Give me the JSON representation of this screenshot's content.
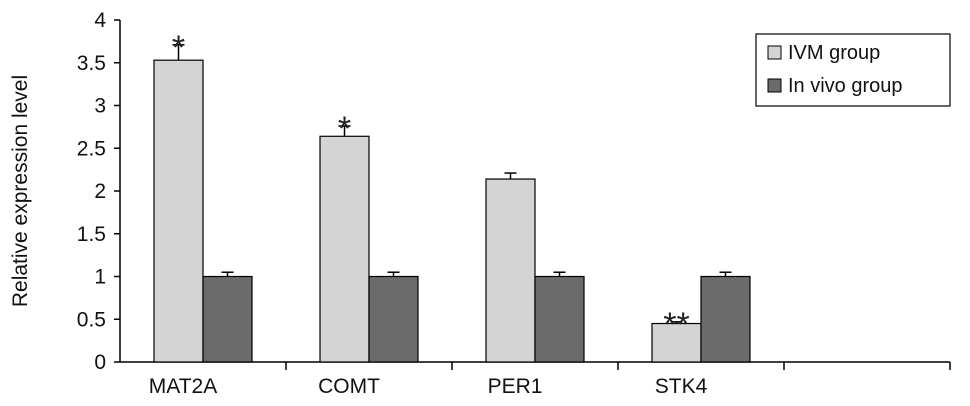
{
  "chart_data": {
    "type": "bar",
    "title": "",
    "xlabel": "",
    "ylabel": "Relative expression level",
    "ylim": [
      0,
      4
    ],
    "yticks": [
      0,
      0.5,
      1,
      1.5,
      2,
      2.5,
      3,
      3.5,
      4
    ],
    "ytick_labels": [
      "0",
      "0.5",
      "1",
      "1.5",
      "2",
      "2.5",
      "3",
      "3.5",
      "4"
    ],
    "categories": [
      "MAT2A",
      "COMT",
      "PER1",
      "STK4"
    ],
    "series": [
      {
        "name": "IVM group",
        "color": "#d4d4d4",
        "values": [
          3.53,
          2.64,
          2.14,
          0.45
        ],
        "errors": [
          0.18,
          0.12,
          0.07,
          0.02
        ],
        "annotations": [
          "*",
          "*",
          "",
          "**"
        ]
      },
      {
        "name": "In vivo group",
        "color": "#6b6b6b",
        "values": [
          1.0,
          1.0,
          1.0,
          1.0
        ],
        "errors": [
          0.05,
          0.05,
          0.05,
          0.05
        ],
        "annotations": [
          "",
          "",
          "",
          ""
        ]
      }
    ],
    "grid": false,
    "legend_position": "top-right"
  }
}
